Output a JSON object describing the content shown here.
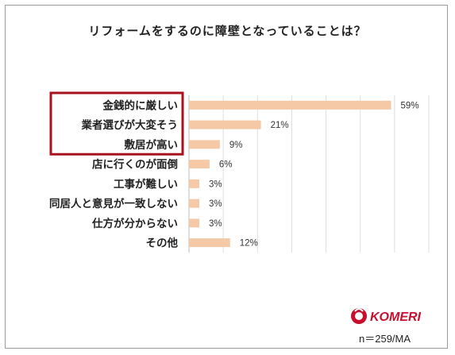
{
  "chart_data": {
    "type": "bar",
    "orientation": "horizontal",
    "title": "リフォームをするのに障壁となっていることは？",
    "categories": [
      "金銭的に厳しい",
      "業者選びが大変そう",
      "敷居が高い",
      "店に行くのが面倒",
      "工事が難しい",
      "同居人と意見が一致しない",
      "仕方が分からない",
      "その他"
    ],
    "values": [
      59,
      21,
      9,
      6,
      3,
      3,
      3,
      12
    ],
    "value_labels": [
      "59%",
      "21%",
      "9%",
      "6%",
      "3%",
      "3%",
      "3%",
      "12%"
    ],
    "xlim": [
      0,
      70
    ],
    "grid": true,
    "highlighted_categories": [
      0,
      1,
      2
    ],
    "bar_color": "#f5c9a6",
    "highlight_color": "#a8121e"
  },
  "brand": {
    "name": "KOMERI",
    "color": "#c8102e"
  },
  "footnote": "n＝259/MA"
}
